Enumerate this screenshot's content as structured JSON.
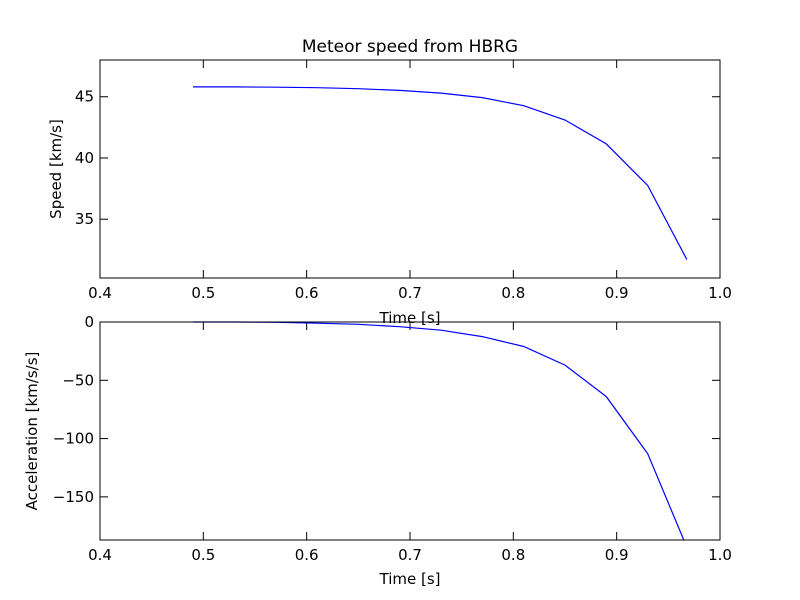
{
  "chart_data": [
    {
      "type": "line",
      "title": "Meteor speed from  HBRG",
      "xlabel": "Time [s]",
      "ylabel": "Speed [km/s]",
      "xlim": [
        0.4,
        1.0
      ],
      "ylim": [
        30.2,
        48.0
      ],
      "xticks": [
        0.4,
        0.5,
        0.6,
        0.7,
        0.8,
        0.9,
        1.0
      ],
      "xtick_labels": [
        "0.4",
        "0.5",
        "0.6",
        "0.7",
        "0.8",
        "0.9",
        "1.0"
      ],
      "yticks": [
        35,
        40,
        45
      ],
      "ytick_labels": [
        "35",
        "40",
        "45"
      ],
      "grid": false,
      "color": "#0000ff",
      "series": [
        {
          "x": [
            0.49,
            0.53,
            0.57,
            0.61,
            0.65,
            0.69,
            0.73,
            0.77,
            0.81,
            0.85,
            0.89,
            0.93,
            0.968
          ],
          "y": [
            45.8,
            45.8,
            45.78,
            45.74,
            45.66,
            45.52,
            45.3,
            44.93,
            44.27,
            43.1,
            41.15,
            37.75,
            31.7
          ]
        }
      ]
    },
    {
      "type": "line",
      "title": "",
      "xlabel": "Time [s]",
      "ylabel": "Acceleration [km/s/s]",
      "xlim": [
        0.4,
        1.0
      ],
      "ylim": [
        -187,
        0
      ],
      "xticks": [
        0.4,
        0.5,
        0.6,
        0.7,
        0.8,
        0.9,
        1.0
      ],
      "xtick_labels": [
        "0.4",
        "0.5",
        "0.6",
        "0.7",
        "0.8",
        "0.9",
        "1.0"
      ],
      "yticks": [
        0,
        -50,
        -100,
        -150
      ],
      "ytick_labels": [
        "0",
        "−50",
        "−100",
        "−150"
      ],
      "grid": false,
      "color": "#0000ff",
      "series": [
        {
          "x": [
            0.49,
            0.53,
            0.57,
            0.61,
            0.65,
            0.69,
            0.73,
            0.77,
            0.81,
            0.85,
            0.89,
            0.93,
            0.965
          ],
          "y": [
            0,
            0,
            -0.3,
            -1,
            -2,
            -4,
            -7,
            -12.5,
            -21,
            -37,
            -64,
            -113,
            -187
          ]
        }
      ]
    }
  ]
}
